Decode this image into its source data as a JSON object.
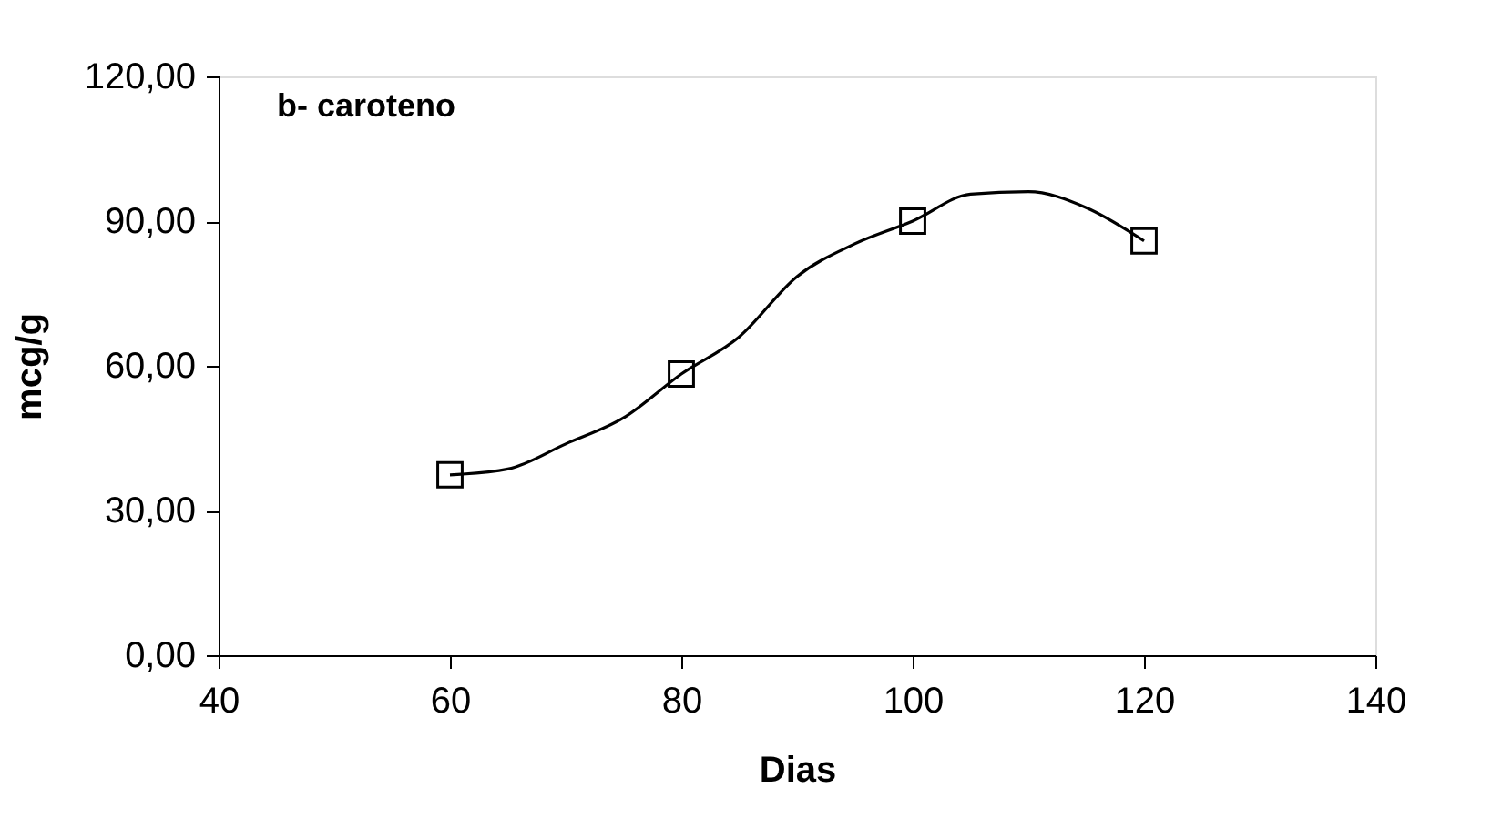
{
  "chart_data": {
    "type": "scatter",
    "xlabel": "Dias",
    "ylabel": "mcg/g",
    "annotations": [
      "b- caroteno"
    ],
    "series": [
      {
        "color": "#000000",
        "marker": "square",
        "x": [
          60,
          80,
          100,
          120
        ],
        "values": [
          37.4,
          58.3,
          90.0,
          85.9
        ]
      },
      {
        "type": "line",
        "color": "#000000",
        "marker": "none",
        "x": [
          60,
          65,
          70,
          75,
          80,
          85,
          90,
          95,
          100,
          105,
          110,
          115,
          120
        ],
        "values": [
          37.4,
          38.6,
          43.8,
          49.2,
          58.3,
          66.0,
          78.5,
          85.3,
          90.0,
          95.6,
          96.1,
          92.8,
          85.9
        ]
      }
    ],
    "xlim": [
      40,
      140
    ],
    "xticks": [
      40,
      60,
      80,
      100,
      120,
      140
    ],
    "ylim": [
      0,
      120
    ],
    "yticks": [
      {
        "value": 0,
        "label": "0,00"
      },
      {
        "value": 30,
        "label": "30,00"
      },
      {
        "value": 60,
        "label": "60,00"
      },
      {
        "value": 90,
        "label": "90,00"
      },
      {
        "value": 120,
        "label": "120,00"
      }
    ],
    "grid": false
  }
}
